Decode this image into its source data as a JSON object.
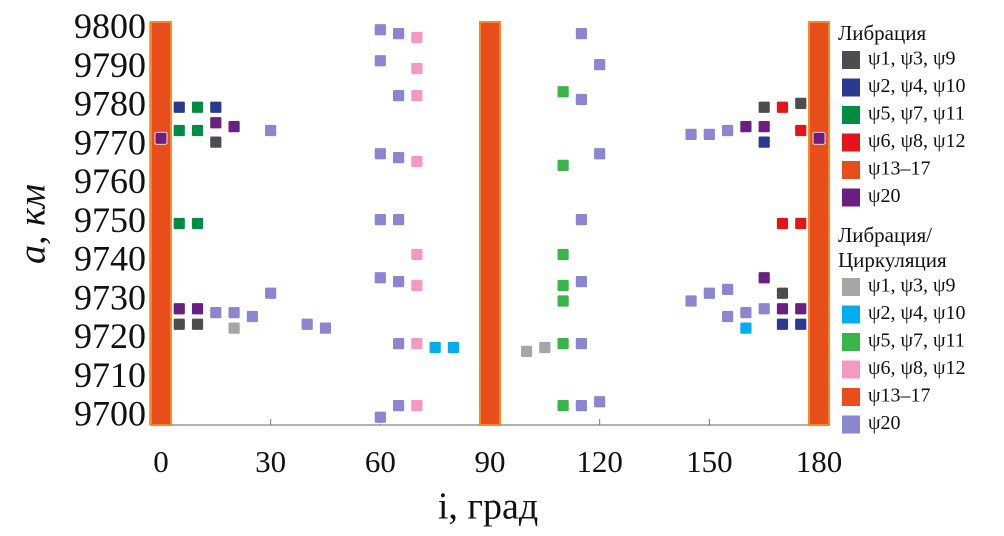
{
  "chart_data": {
    "type": "scatter",
    "xlabel": "i, град",
    "ylabel": "a, км",
    "xlim": [
      -3,
      183
    ],
    "ylim": [
      9698,
      9802
    ],
    "xticks": [
      0,
      30,
      60,
      90,
      120,
      150,
      180
    ],
    "yticks": [
      9700,
      9710,
      9720,
      9730,
      9740,
      9750,
      9760,
      9770,
      9780,
      9790,
      9800
    ],
    "legend_groups": [
      {
        "title": [
          "Либрация"
        ],
        "series": [
          {
            "name": "ψ1, ψ3, ψ9",
            "color": "#4d4d4d",
            "x": [
              5,
              10,
              15,
              165,
              175,
              170
            ],
            "values": [
              9724,
              9724,
              9771,
              9780,
              9781,
              9732
            ]
          },
          {
            "name": "ψ2, ψ4, ψ10",
            "color": "#2b3990",
            "x": [
              5,
              15,
              165,
              170,
              175
            ],
            "values": [
              9780,
              9780,
              9771,
              9724,
              9724
            ]
          },
          {
            "name": "ψ5, ψ7, ψ11",
            "color": "#008c45",
            "x": [
              5,
              10,
              10,
              5,
              10
            ],
            "values": [
              9774,
              9774,
              9780,
              9750,
              9750
            ]
          },
          {
            "name": "ψ6, ψ8, ψ12",
            "color": "#e3151b",
            "x": [
              170,
              175,
              170,
              175,
              180
            ],
            "values": [
              9780,
              9774,
              9750,
              9750,
              9748
            ]
          },
          {
            "name": "ψ13–17",
            "color": "#e84e1b",
            "marker": "band",
            "x": [
              0,
              90,
              180
            ],
            "values": [
              null,
              null,
              null
            ]
          },
          {
            "name": "ψ20",
            "color": "#6a2080",
            "x": [
              0,
              15,
              20,
              5,
              10,
              160,
              165,
              165,
              170,
              175,
              180
            ],
            "values": [
              9772,
              9776,
              9775,
              9728,
              9728,
              9775,
              9775,
              9736,
              9728,
              9728,
              9772
            ]
          }
        ]
      },
      {
        "title": [
          "Либрация/",
          "Циркуляция"
        ],
        "series": [
          {
            "name": "ψ1, ψ3, ψ9",
            "color": "#a6a6a6",
            "x": [
              20,
              100,
              105,
              110
            ],
            "values": [
              9723,
              9717,
              9718,
              9719
            ]
          },
          {
            "name": "ψ2, ψ4, ψ10",
            "color": "#00aeef",
            "x": [
              75,
              80,
              160
            ],
            "values": [
              9718,
              9718,
              9723
            ]
          },
          {
            "name": "ψ5, ψ7, ψ11",
            "color": "#39b54a",
            "x": [
              110,
              110,
              110,
              110,
              110,
              110,
              110
            ],
            "values": [
              9784,
              9765,
              9742,
              9734,
              9730,
              9719,
              9703
            ]
          },
          {
            "name": "ψ6, ψ8, ψ12",
            "color": "#f49ac2",
            "x": [
              70,
              70,
              70,
              70,
              70,
              70,
              70,
              70
            ],
            "values": [
              9798,
              9790,
              9783,
              9766,
              9742,
              9734,
              9719,
              9703
            ]
          },
          {
            "name": "ψ13–17",
            "color": "#e84e1b",
            "x": [],
            "values": []
          },
          {
            "name": "ψ20",
            "color": "#8c86d0",
            "x": [
              60,
              65,
              60,
              65,
              115,
              120,
              115,
              30,
              60,
              65,
              120,
              60,
              65,
              115,
              60,
              65,
              115,
              30,
              15,
              20,
              25,
              40,
              45,
              65,
              115,
              60,
              65,
              115,
              120,
              145,
              150,
              155,
              145,
              150,
              155,
              155,
              160,
              165
            ],
            "values": [
              9800,
              9799,
              9792,
              9783,
              9799,
              9791,
              9782,
              9774,
              9768,
              9767,
              9768,
              9751,
              9751,
              9751,
              9736,
              9735,
              9735,
              9732,
              9727,
              9727,
              9726,
              9724,
              9723,
              9719,
              9719,
              9700,
              9703,
              9703,
              9704,
              9773,
              9773,
              9774,
              9730,
              9732,
              9733,
              9726,
              9727,
              9728
            ]
          }
        ]
      }
    ]
  }
}
